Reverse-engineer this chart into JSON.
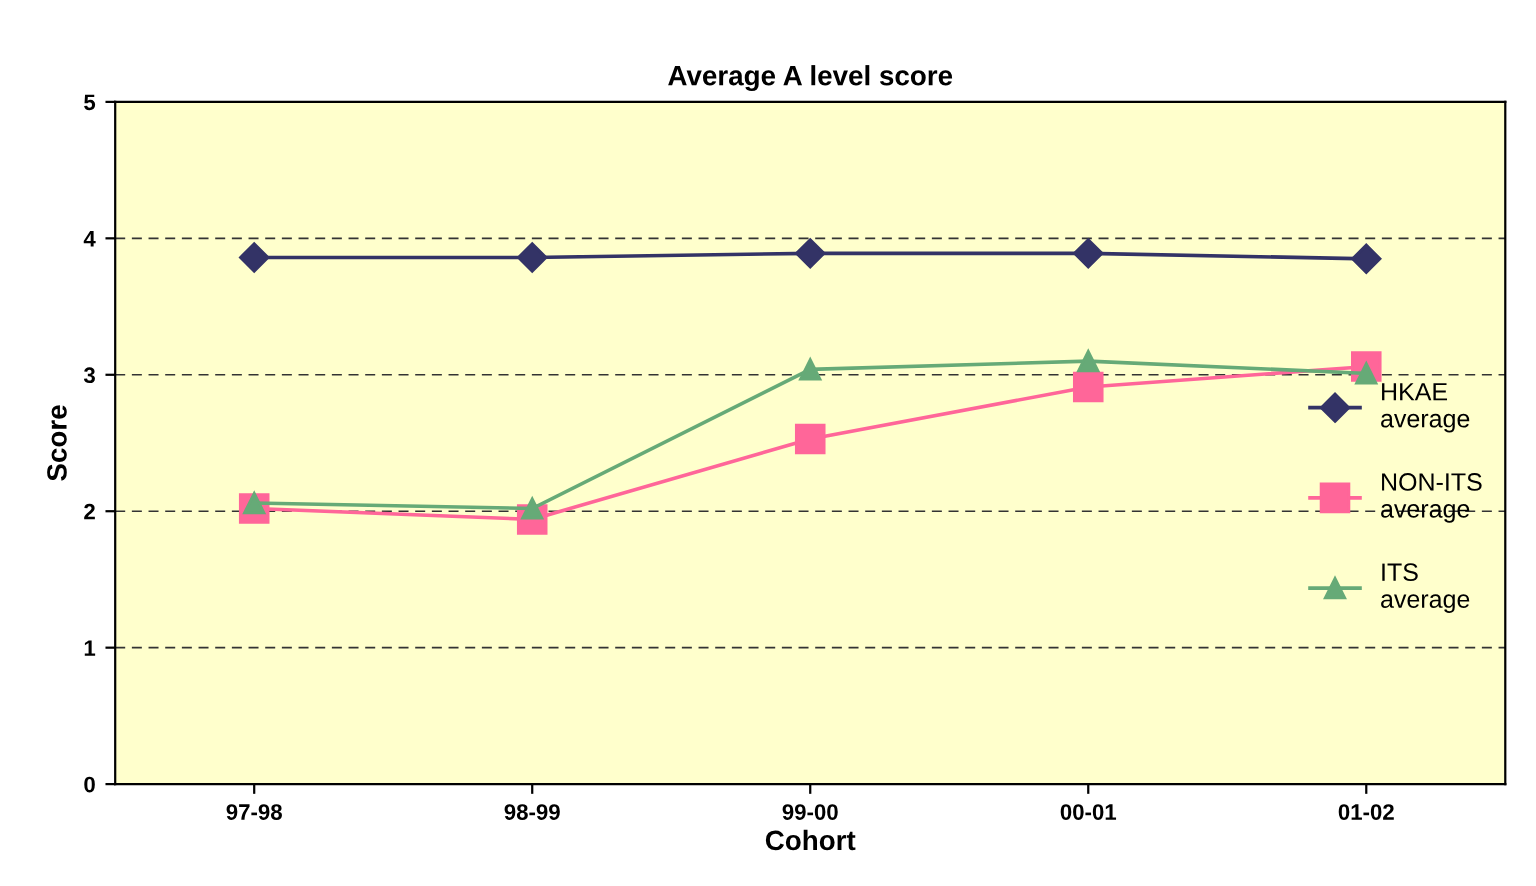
{
  "chart_data": {
    "type": "line",
    "title": "Average A level score",
    "xlabel": "Cohort",
    "ylabel": "Score",
    "categories": [
      "97-98",
      "98-99",
      "99-00",
      "00-01",
      "01-02"
    ],
    "series": [
      {
        "name": "HKAE average",
        "color": "#333366",
        "marker": "diamond",
        "values": [
          3.86,
          3.86,
          3.89,
          3.89,
          3.85
        ]
      },
      {
        "name": "NON-ITS average",
        "color": "#ff6699",
        "marker": "square",
        "values": [
          2.02,
          1.94,
          2.53,
          2.91,
          3.06
        ]
      },
      {
        "name": "ITS average",
        "color": "#66aa77",
        "marker": "triangle",
        "values": [
          2.06,
          2.02,
          3.04,
          3.1,
          3.01
        ]
      }
    ],
    "ylim": [
      0,
      5
    ],
    "yticks": [
      0,
      1,
      2,
      3,
      4,
      5
    ],
    "grid": "y",
    "legend": "right",
    "line_style": "solid"
  }
}
